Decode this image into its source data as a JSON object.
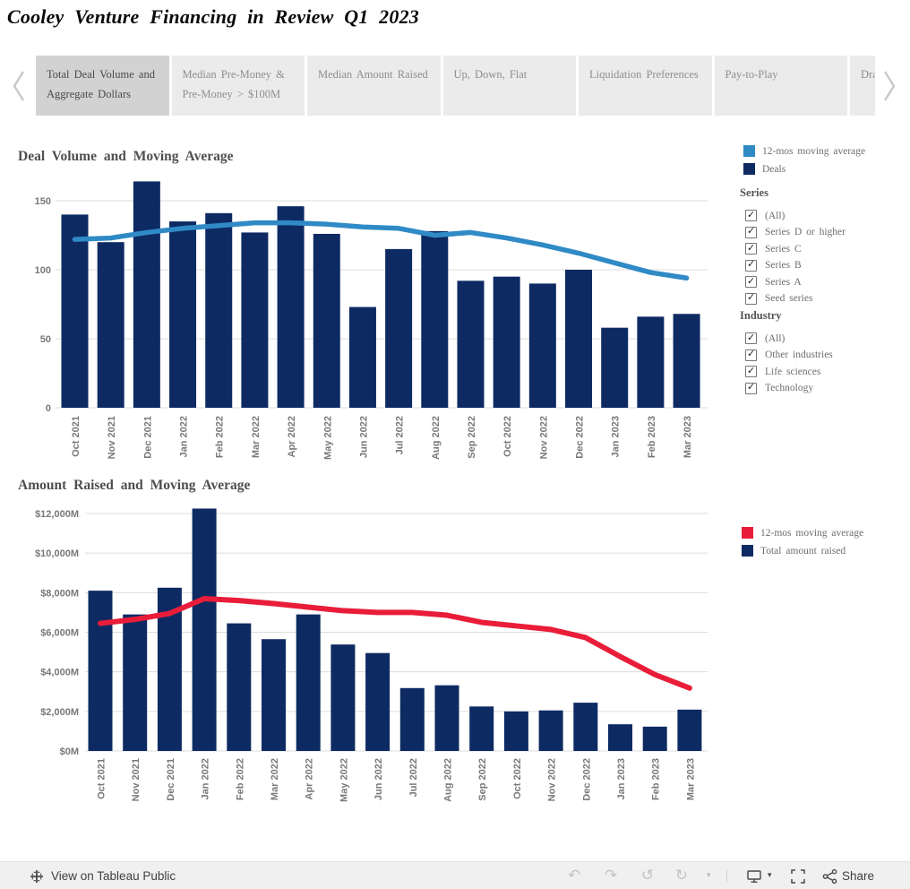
{
  "page_title": "Cooley Venture Financing in Review Q1 2023",
  "tab_bar": {
    "tabs": [
      {
        "label": "Total Deal Volume and Aggregate Dollars",
        "active": true
      },
      {
        "label": "Median Pre-Money & Pre-Money > $100M",
        "active": false
      },
      {
        "label": "Median Amount Raised",
        "active": false
      },
      {
        "label": "Up, Down, Flat",
        "active": false
      },
      {
        "label": "Liquidation Preferences",
        "active": false
      },
      {
        "label": "Pay-to-Play",
        "active": false
      },
      {
        "label": "Dra",
        "active": false
      }
    ]
  },
  "chart_data": [
    {
      "type": "bar",
      "title": "Deal Volume and Moving Average",
      "categories": [
        "Oct 2021",
        "Nov 2021",
        "Dec 2021",
        "Jan 2022",
        "Feb 2022",
        "Mar 2022",
        "Apr 2022",
        "May 2022",
        "Jun 2022",
        "Jul 2022",
        "Aug 2022",
        "Sep 2022",
        "Oct 2022",
        "Nov 2022",
        "Dec 2022",
        "Jan 2023",
        "Feb 2023",
        "Mar 2023"
      ],
      "ylim": [
        0,
        170
      ],
      "grid": true,
      "legend_position": "right",
      "yticks": [
        {
          "value": 0,
          "label": "0"
        },
        {
          "value": 50,
          "label": "50"
        },
        {
          "value": 100,
          "label": "100"
        },
        {
          "value": 150,
          "label": "150"
        }
      ],
      "series": [
        {
          "name": "Deals",
          "type": "bar",
          "color": "#0d2a63",
          "values": [
            140,
            120,
            164,
            135,
            141,
            127,
            146,
            126,
            73,
            115,
            128,
            92,
            95,
            90,
            100,
            58,
            66,
            68
          ]
        },
        {
          "name": "12-mos moving average",
          "type": "line",
          "color": "#2f8ac6",
          "values": [
            122,
            123,
            127,
            130,
            132,
            134,
            134,
            133,
            131,
            130,
            125,
            127,
            123,
            118,
            112,
            105,
            98,
            94
          ]
        }
      ],
      "legend": [
        {
          "label": "12-mos moving average",
          "color": "#2f8ac6"
        },
        {
          "label": "Deals",
          "color": "#0d2a63"
        }
      ]
    },
    {
      "type": "bar",
      "title": "Amount Raised and Moving Average",
      "categories": [
        "Oct 2021",
        "Nov 2021",
        "Dec 2021",
        "Jan 2022",
        "Feb 2022",
        "Mar 2022",
        "Apr 2022",
        "May 2022",
        "Jun 2022",
        "Jul 2022",
        "Aug 2022",
        "Sep 2022",
        "Oct 2022",
        "Nov 2022",
        "Dec 2022",
        "Jan 2023",
        "Feb 2023",
        "Mar 2023"
      ],
      "ylim": [
        0,
        12500
      ],
      "grid": true,
      "legend_position": "right",
      "yticks": [
        {
          "value": 0,
          "label": "$0M"
        },
        {
          "value": 2000,
          "label": "$2,000M"
        },
        {
          "value": 4000,
          "label": "$4,000M"
        },
        {
          "value": 6000,
          "label": "$6,000M"
        },
        {
          "value": 8000,
          "label": "$8,000M"
        },
        {
          "value": 10000,
          "label": "$10,000M"
        },
        {
          "value": 12000,
          "label": "$12,000M"
        }
      ],
      "series": [
        {
          "name": "Total amount raised",
          "type": "bar",
          "color": "#0d2a63",
          "values": [
            8100,
            6900,
            8250,
            12250,
            6450,
            5650,
            6900,
            5380,
            4950,
            3180,
            3320,
            2250,
            2000,
            2050,
            2440,
            1350,
            1230,
            2090
          ]
        },
        {
          "name": "12-mos moving average",
          "type": "line",
          "color": "#e91d39",
          "values": [
            6450,
            6650,
            6950,
            7700,
            7600,
            7450,
            7270,
            7090,
            7000,
            7000,
            6860,
            6500,
            6320,
            6140,
            5730,
            4770,
            3860,
            3180
          ]
        }
      ],
      "legend": [
        {
          "label": "12-mos moving average",
          "color": "#e91d39"
        },
        {
          "label": "Total amount raised",
          "color": "#0d2a63"
        }
      ]
    }
  ],
  "filters": {
    "series": {
      "title": "Series",
      "items": [
        {
          "label": "(All)",
          "checked": true
        },
        {
          "label": "Series D or higher",
          "checked": true
        },
        {
          "label": "Series C",
          "checked": true
        },
        {
          "label": "Series B",
          "checked": true
        },
        {
          "label": "Series A",
          "checked": true
        },
        {
          "label": "Seed series",
          "checked": true
        }
      ]
    },
    "industry": {
      "title": "Industry",
      "items": [
        {
          "label": "(All)",
          "checked": true
        },
        {
          "label": "Other industries",
          "checked": true
        },
        {
          "label": "Life sciences",
          "checked": true
        },
        {
          "label": "Technology",
          "checked": true
        }
      ]
    }
  },
  "footer": {
    "view_on_label": "View on Tableau Public",
    "share_label": "Share",
    "icon_glyphs": {
      "undo": "↶",
      "redo": "↷",
      "revert": "↺",
      "refresh": "↻",
      "caret": "▾"
    },
    "colors": {
      "bar_navy": "#0d2a63",
      "line_blue": "#2f8ac6",
      "line_red": "#e91d39"
    }
  }
}
